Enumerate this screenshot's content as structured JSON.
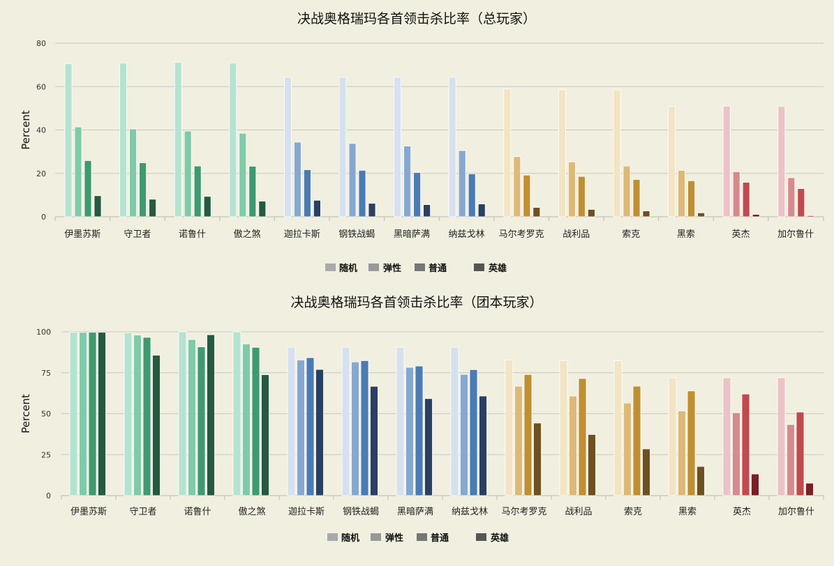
{
  "colors": {
    "background": "#f1efdf",
    "grid": "#c8c8c0",
    "axis": "#b9b9b0",
    "legend_swatches": [
      "#a9a9a9",
      "#999999",
      "#777777",
      "#555555"
    ],
    "group_palettes": [
      [
        "#b5e3d1",
        "#7fcaa8",
        "#3e9a70",
        "#255a40"
      ],
      [
        "#d6e1ef",
        "#86a8d0",
        "#4b7bb4",
        "#2a3f62"
      ],
      [
        "#f2e4c4",
        "#ddb978",
        "#c08f32",
        "#6e5120"
      ],
      [
        "#ebc3c7",
        "#d68a8c",
        "#c04a4e",
        "#7a1f26"
      ]
    ]
  },
  "chart_data": [
    {
      "type": "bar",
      "title": "决战奥格瑞玛各首领击杀比率（总玩家）",
      "ylabel": "Percent",
      "xlabel": "",
      "ylim": [
        0,
        80
      ],
      "yticks": [
        0,
        20,
        40,
        60,
        80
      ],
      "grid": true,
      "legend_position": "bottom",
      "categories": [
        "伊墨苏斯",
        "守卫者",
        "诺鲁什",
        "傲之煞",
        "迦拉卡斯",
        "钢铁战蝎",
        "黑暗萨满",
        "纳兹戈林",
        "马尔考罗克",
        "战利品",
        "索克",
        "黑索",
        "英杰",
        "加尔鲁什"
      ],
      "series": [
        {
          "name": "随机",
          "values": [
            70.6,
            70.9,
            71.2,
            70.9,
            64.3,
            64.3,
            64.3,
            64.3,
            58.9,
            58.6,
            58.5,
            50.9,
            51.0,
            50.9
          ]
        },
        {
          "name": "弹性",
          "values": [
            41.4,
            40.5,
            39.5,
            38.5,
            34.4,
            33.8,
            32.6,
            30.5,
            27.7,
            25.3,
            23.4,
            21.4,
            20.8,
            18.0
          ]
        },
        {
          "name": "普通",
          "values": [
            25.9,
            24.9,
            23.4,
            23.3,
            21.7,
            21.4,
            20.4,
            19.8,
            19.2,
            18.6,
            17.2,
            16.6,
            15.9,
            13.0
          ]
        },
        {
          "name": "英雄",
          "values": [
            9.7,
            8.1,
            9.4,
            7.2,
            7.6,
            6.2,
            5.6,
            5.9,
            4.3,
            3.4,
            2.7,
            1.8,
            1.1,
            0.5
          ]
        }
      ]
    },
    {
      "type": "bar",
      "title": "决战奥格瑞玛各首领击杀比率（团本玩家）",
      "ylabel": "Percent",
      "xlabel": "",
      "ylim": [
        0,
        100
      ],
      "yticks": [
        0,
        25,
        50,
        75,
        100
      ],
      "grid": true,
      "legend_position": "bottom",
      "categories": [
        "伊墨苏斯",
        "守卫者",
        "诺鲁什",
        "傲之煞",
        "迦拉卡斯",
        "钢铁战蝎",
        "黑暗萨满",
        "纳兹戈林",
        "马尔考罗克",
        "战利品",
        "索克",
        "黑索",
        "英杰",
        "加尔鲁什"
      ],
      "series": [
        {
          "name": "随机",
          "values": [
            99.8,
            99.5,
            100.0,
            100.0,
            90.6,
            90.6,
            90.6,
            90.6,
            82.8,
            82.4,
            82.3,
            71.9,
            71.9,
            71.9
          ]
        },
        {
          "name": "弹性",
          "values": [
            99.6,
            98.0,
            95.3,
            92.6,
            82.8,
            81.6,
            78.3,
            74.0,
            66.8,
            60.8,
            56.5,
            51.7,
            50.6,
            43.4
          ]
        },
        {
          "name": "普通",
          "values": [
            99.7,
            96.6,
            90.8,
            90.5,
            84.2,
            82.4,
            79.1,
            76.9,
            73.9,
            71.5,
            66.8,
            63.9,
            62.0,
            51.0
          ]
        },
        {
          "name": "英雄",
          "values": [
            99.7,
            85.7,
            98.2,
            73.8,
            77.0,
            66.7,
            59.2,
            60.8,
            44.3,
            37.3,
            28.5,
            17.8,
            13.2,
            7.6
          ]
        }
      ]
    }
  ]
}
